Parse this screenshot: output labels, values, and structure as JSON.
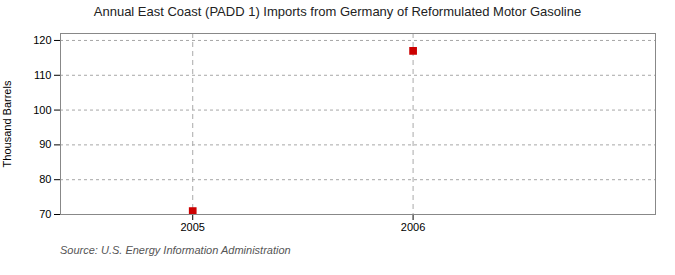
{
  "chart_data": {
    "type": "scatter",
    "title": "Annual East Coast (PADD 1) Imports from Germany of Reformulated Motor Gasoline",
    "ylabel": "Thousand Barrels",
    "annotation": "Source: U.S. Energy Information Administration",
    "x": [
      2005,
      2006
    ],
    "values": [
      71,
      117
    ],
    "color": "#cc0000",
    "marker": "square",
    "xlim": [
      2004.4,
      2007.1
    ],
    "ylim": [
      70,
      122
    ],
    "xticks": [
      2005,
      2006
    ],
    "yticks": [
      70,
      80,
      90,
      100,
      110,
      120
    ],
    "grid": true
  }
}
